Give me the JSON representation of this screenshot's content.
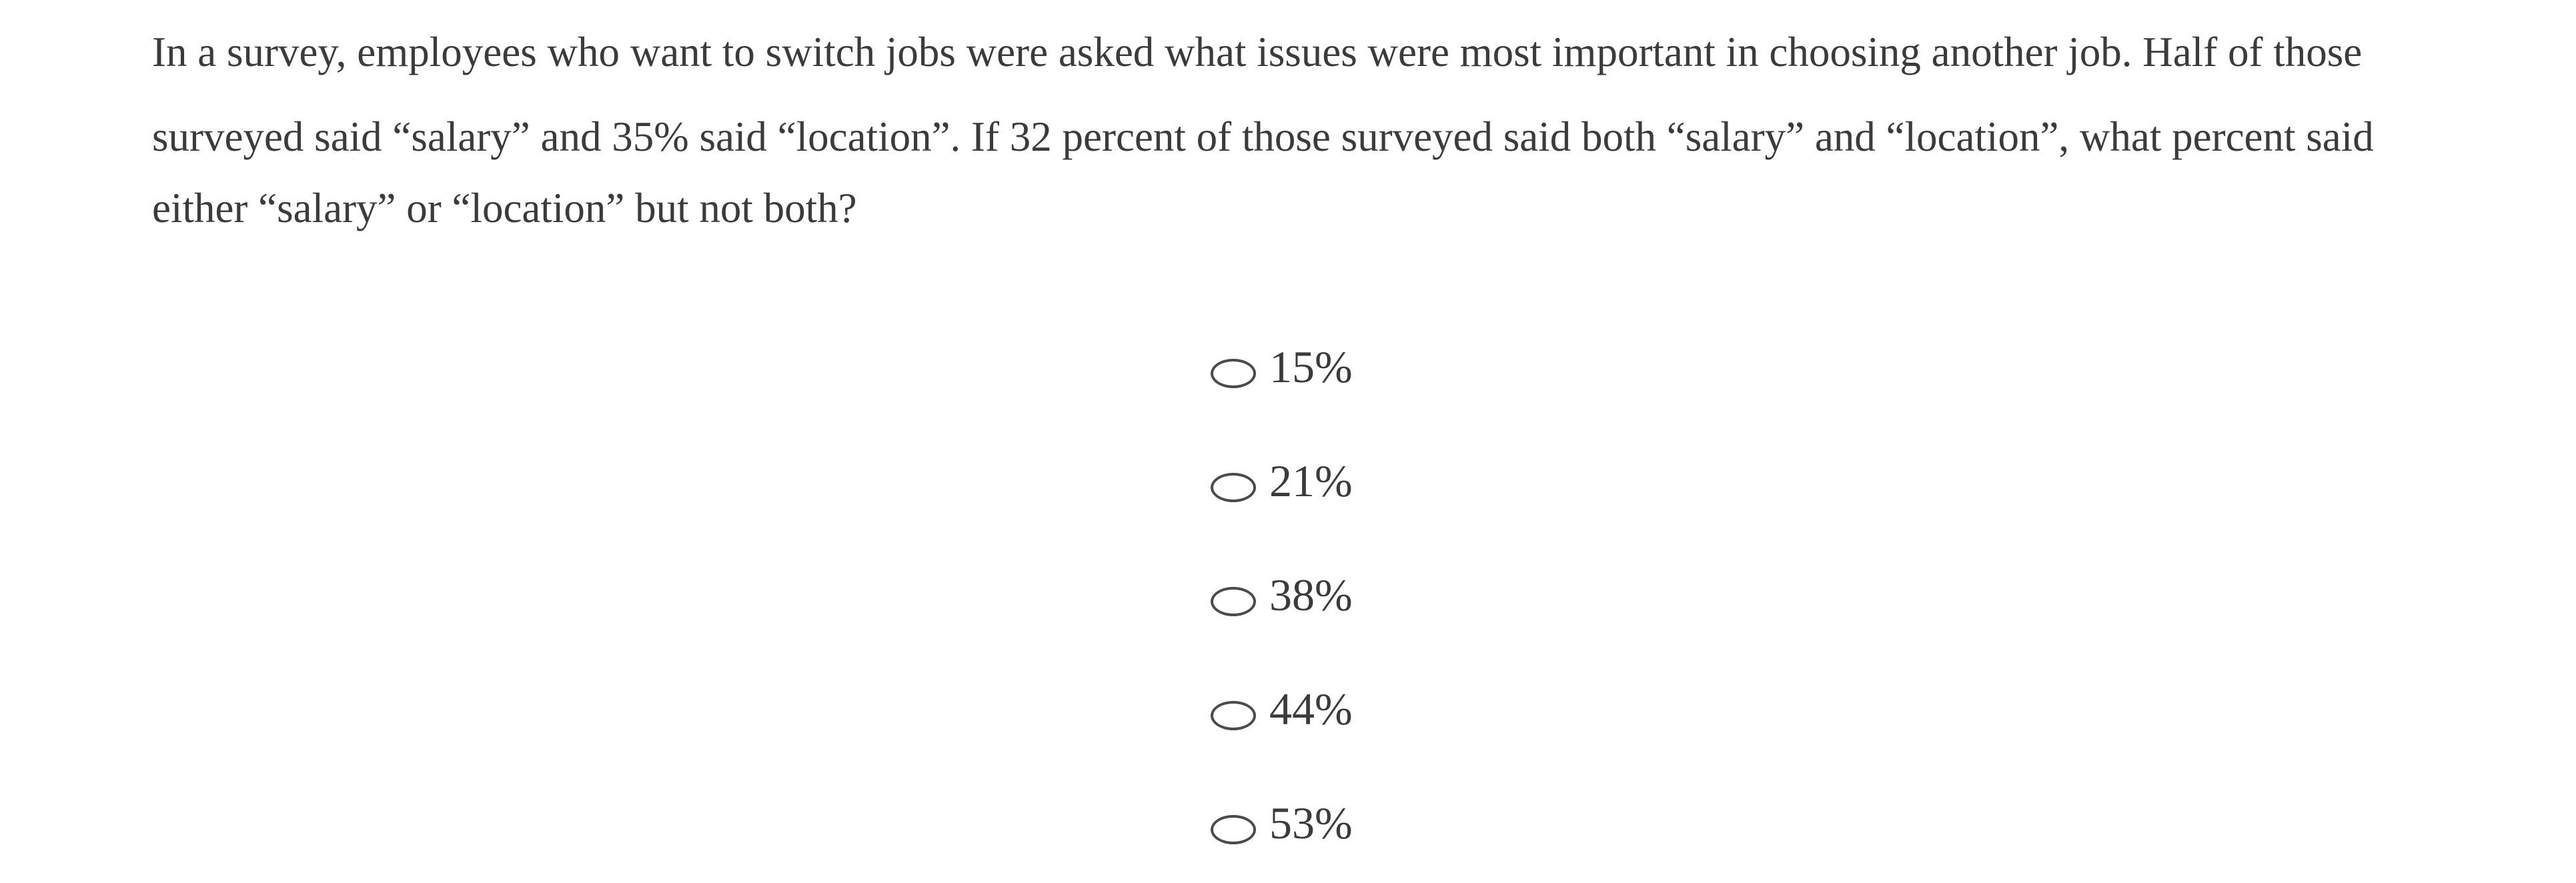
{
  "page": {
    "background_color": "#ffffff",
    "text_color": "#3b3b3b",
    "radio_border_color": "#4b4b4b"
  },
  "question": {
    "full_text": "In a survey, employees who want to switch jobs were asked what issues were most important in choosing another job. Half of those surveyed said “salary” and 35% said “location”. If 32 percent of those surveyed said both “salary” and “location”, what percent said either “salary” or “location” but not both?",
    "lines": [
      "In a survey, employees who want to switch jobs were asked what issues were most important in choosing another job. Half of those",
      "surveyed said “salary” and 35% said “location”. If 32 percent of those surveyed said both “salary” and “location”, what percent said",
      "either “salary” or “location” but not both?"
    ]
  },
  "options": {
    "icon": "radio-unselected-icon",
    "items": [
      {
        "label": "15%",
        "selected": false
      },
      {
        "label": "21%",
        "selected": false
      },
      {
        "label": "38%",
        "selected": false
      },
      {
        "label": "44%",
        "selected": false
      },
      {
        "label": "53%",
        "selected": false
      }
    ]
  }
}
